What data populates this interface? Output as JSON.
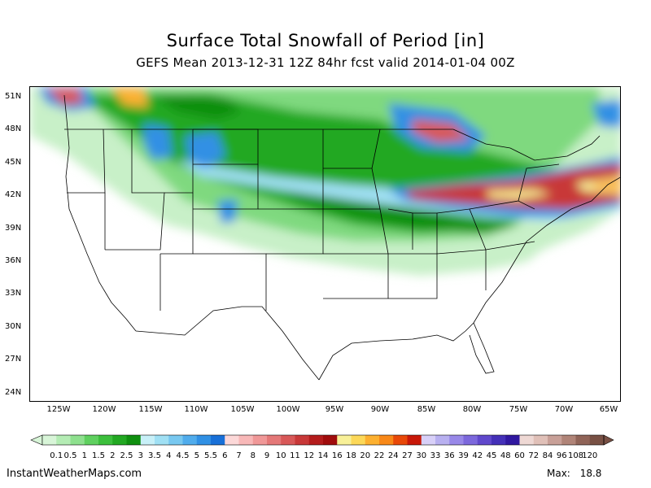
{
  "title": "Surface Total Snowfall of Period [in]",
  "subtitle": "GEFS Mean 2013-12-31 12Z 84hr fcst valid 2014-01-04 00Z",
  "lat_labels": [
    "51N",
    "48N",
    "45N",
    "42N",
    "39N",
    "36N",
    "33N",
    "30N",
    "27N",
    "24N"
  ],
  "lon_labels": [
    "125W",
    "120W",
    "115W",
    "110W",
    "105W",
    "100W",
    "95W",
    "90W",
    "85W",
    "80W",
    "75W",
    "70W",
    "65W"
  ],
  "colorbar": {
    "labels": [
      "0.1",
      "0.5",
      "1",
      "1.5",
      "2",
      "2.5",
      "3",
      "3.5",
      "4",
      "4.5",
      "5",
      "5.5",
      "6",
      "7",
      "8",
      "9",
      "10",
      "11",
      "12",
      "14",
      "16",
      "18",
      "20",
      "22",
      "24",
      "27",
      "30",
      "33",
      "36",
      "39",
      "42",
      "45",
      "48",
      "60",
      "72",
      "84",
      "96",
      "108",
      "120"
    ],
    "colors": [
      "#d8f5d8",
      "#b4ecb4",
      "#8ee08e",
      "#5fd05f",
      "#3cbf3c",
      "#22a822",
      "#0f8f0f",
      "#c8f0f8",
      "#a0e0f4",
      "#78c8f0",
      "#50acec",
      "#3090e4",
      "#1870d8",
      "#fcd8d8",
      "#f8b8b8",
      "#f09898",
      "#e47878",
      "#d85858",
      "#c83838",
      "#b41c1c",
      "#a00c0c",
      "#f8f098",
      "#fcd858",
      "#fcb030",
      "#f88818",
      "#e84808",
      "#c81808",
      "#d8d0f8",
      "#b8b0f0",
      "#9888e8",
      "#7c68dc",
      "#6048cc",
      "#4430b8",
      "#3018a0",
      "#eed8d4",
      "#e0c0b8",
      "#c8a098",
      "#b08478",
      "#906458",
      "#785044"
    ]
  },
  "footer": {
    "site": "InstantWeatherMaps.com",
    "max_label": "Max:",
    "max_value": "18.8"
  }
}
